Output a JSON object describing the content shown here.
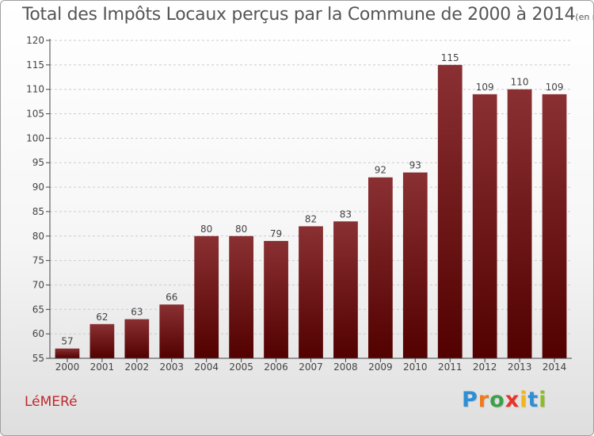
{
  "title": "Total des Impôts Locaux perçus par la Commune de 2000 à 2014",
  "title_unit": "(en milliers d'€)",
  "commune": "LéMERé",
  "logo": {
    "text": "Proxiti",
    "letter_colors": [
      "#2e8fd6",
      "#f07a1a",
      "#3aa14a",
      "#e8332b",
      "#f2b51a",
      "#2e8fd6",
      "#8bbd28"
    ]
  },
  "colors": {
    "bar_top": "#8a3033",
    "bar_bottom": "#520000",
    "axis": "#444444",
    "grid": "#cccccc"
  },
  "chart_data": {
    "type": "bar",
    "title": "Total des Impôts Locaux perçus par la Commune de 2000 à 2014",
    "xlabel": "",
    "ylabel": "",
    "categories": [
      "2000",
      "2001",
      "2002",
      "2003",
      "2004",
      "2005",
      "2006",
      "2007",
      "2008",
      "2009",
      "2010",
      "2011",
      "2012",
      "2013",
      "2014"
    ],
    "values": [
      57,
      62,
      63,
      66,
      80,
      80,
      79,
      82,
      83,
      92,
      93,
      115,
      109,
      110,
      109
    ],
    "ylim": [
      55,
      120
    ],
    "yticks": [
      55,
      60,
      65,
      70,
      75,
      80,
      85,
      90,
      95,
      100,
      105,
      110,
      115,
      120
    ],
    "grid": true,
    "data_labels": true
  }
}
